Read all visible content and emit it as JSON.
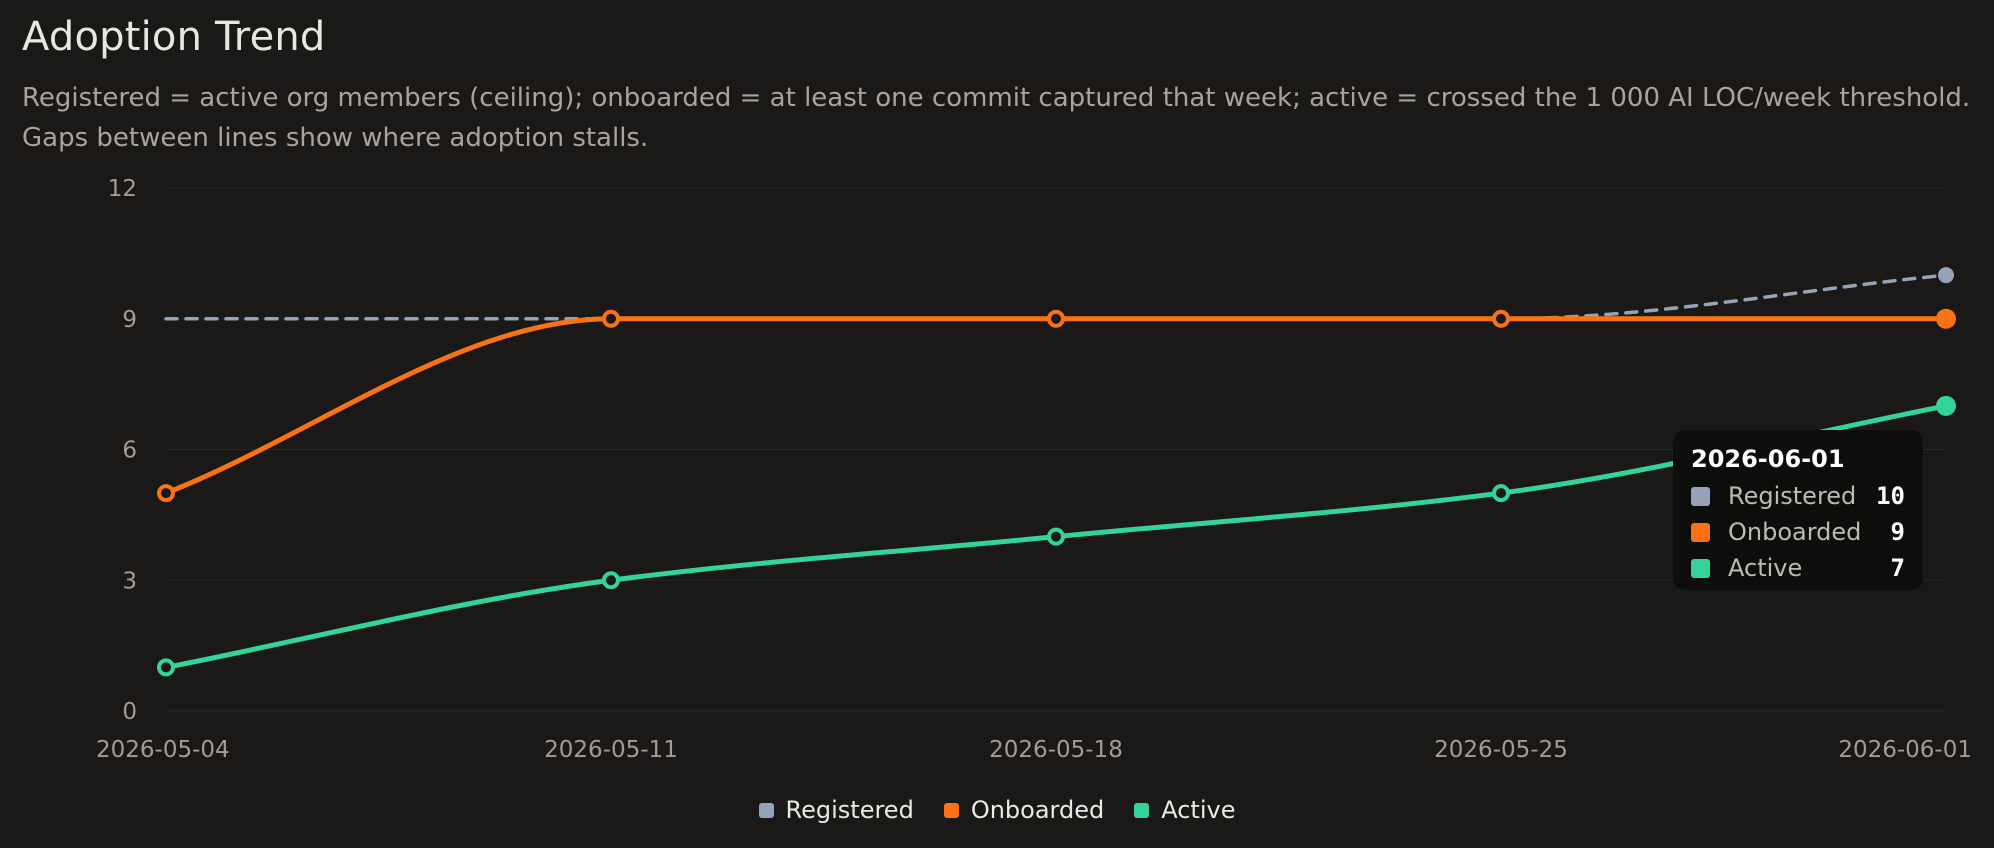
{
  "header": {
    "title": "Adoption Trend",
    "subtitle": "Registered = active org members (ceiling); onboarded = at least one commit captured that week; active = crossed the 1 000 AI LOC/week threshold. Gaps between lines show where adoption stalls."
  },
  "chart_data": {
    "type": "line",
    "title": "Adoption Trend",
    "xlabel": "",
    "ylabel": "",
    "x": [
      "2026-05-04",
      "2026-05-11",
      "2026-05-18",
      "2026-05-25",
      "2026-06-01"
    ],
    "ylim": [
      0,
      12
    ],
    "yticks": [
      0,
      3,
      6,
      9,
      12
    ],
    "grid": true,
    "legend": "bottom-center",
    "series": [
      {
        "name": "Registered",
        "color": "#94a3b8",
        "style": "dashed",
        "values": [
          9,
          9,
          9,
          9,
          10
        ]
      },
      {
        "name": "Onboarded",
        "color": "#f97316",
        "style": "solid",
        "values": [
          5,
          9,
          9,
          9,
          9
        ]
      },
      {
        "name": "Active",
        "color": "#34d399",
        "style": "solid",
        "values": [
          1,
          3,
          4,
          5,
          7
        ]
      }
    ]
  },
  "tooltip": {
    "date": "2026-06-01",
    "rows": [
      {
        "label": "Registered",
        "value": "10",
        "color": "#94a3b8"
      },
      {
        "label": "Onboarded",
        "value": "9",
        "color": "#f97316"
      },
      {
        "label": "Active",
        "value": "7",
        "color": "#34d399"
      }
    ]
  }
}
